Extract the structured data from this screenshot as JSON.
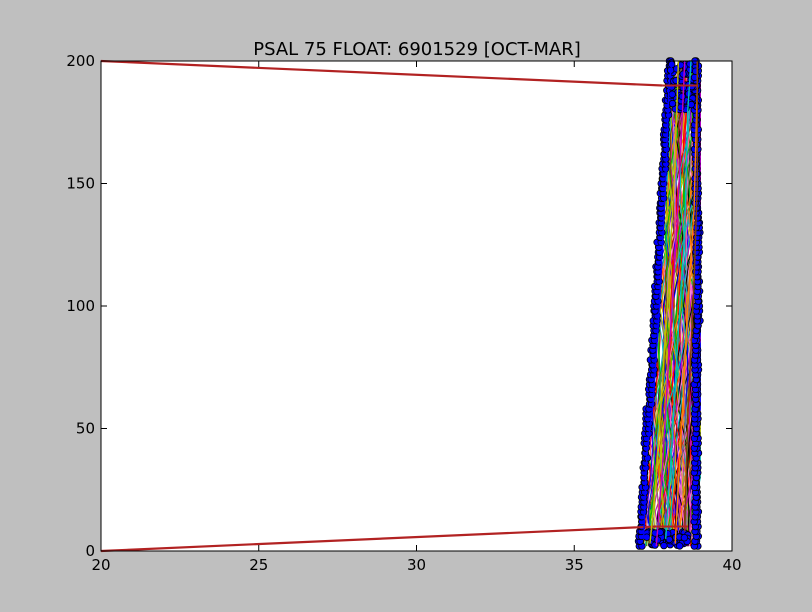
{
  "figure": {
    "background": "#bfbfbf",
    "axes_background": "#ffffff"
  },
  "chart_data": {
    "type": "scatter",
    "title": "PSAL 75 FLOAT: 6901529 [OCT-MAR]",
    "xlabel": "",
    "ylabel": "",
    "xlim": [
      20,
      40
    ],
    "ylim": [
      0,
      200
    ],
    "grid": false,
    "legend": "none",
    "xticks": [
      20,
      25,
      30,
      35,
      40
    ],
    "yticks": [
      0,
      50,
      100,
      150,
      200
    ],
    "xtick_labels": [
      "20",
      "25",
      "30",
      "35",
      "40"
    ],
    "ytick_labels": [
      "0",
      "50",
      "100",
      "150",
      "200"
    ],
    "marker_color": "#0000ff",
    "marker_edge": "#000000",
    "line_colors": [
      "#ff0000",
      "#00bf00",
      "#0000ff",
      "#bfbf00",
      "#bf00bf",
      "#00bfbf",
      "#ff8000",
      "#804000",
      "#808080",
      "#000000",
      "#ff66cc"
    ],
    "series": [
      {
        "values": [
          [
            20,
            200
          ],
          [
            37.8,
            190
          ]
        ],
        "color": "#b22222"
      },
      {
        "values": [
          [
            20,
            0
          ],
          [
            37.6,
            10
          ]
        ],
        "color": "#b22222"
      },
      {
        "values": [
          [
            37.2,
            5
          ],
          [
            37.3,
            40
          ],
          [
            37.5,
            60
          ],
          [
            37.7,
            100
          ],
          [
            37.9,
            150
          ],
          [
            38.0,
            190
          ],
          [
            38.1,
            200
          ]
        ]
      },
      {
        "values": [
          [
            37.4,
            3
          ],
          [
            37.6,
            30
          ],
          [
            37.8,
            70
          ],
          [
            38.0,
            110
          ],
          [
            38.2,
            160
          ],
          [
            38.3,
            200
          ]
        ]
      },
      {
        "values": [
          [
            37.6,
            2
          ],
          [
            37.8,
            35
          ],
          [
            38.0,
            80
          ],
          [
            38.2,
            120
          ],
          [
            38.4,
            170
          ],
          [
            38.5,
            200
          ]
        ]
      },
      {
        "values": [
          [
            37.9,
            5
          ],
          [
            38.1,
            45
          ],
          [
            38.3,
            90
          ],
          [
            38.5,
            130
          ],
          [
            38.6,
            180
          ],
          [
            38.7,
            200
          ]
        ]
      },
      {
        "values": [
          [
            38.2,
            3
          ],
          [
            38.4,
            50
          ],
          [
            38.6,
            100
          ],
          [
            38.8,
            140
          ],
          [
            38.9,
            190
          ],
          [
            38.9,
            200
          ]
        ]
      },
      {
        "values": [
          [
            38.5,
            8
          ],
          [
            38.6,
            55
          ],
          [
            38.8,
            110
          ],
          [
            38.9,
            150
          ],
          [
            38.9,
            200
          ]
        ]
      }
    ]
  }
}
